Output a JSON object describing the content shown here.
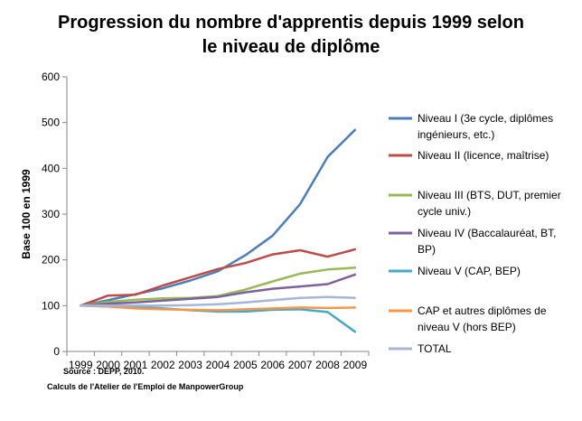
{
  "chart_data": {
    "type": "line",
    "title": "Progression du nombre d'apprentis depuis 1999 selon le niveau de diplôme",
    "title_lines": [
      "Progression du nombre d'apprentis depuis 1999 selon",
      "le niveau de diplôme"
    ],
    "ylabel": "Base 100 en 1999",
    "xlabel": "",
    "ylim": [
      0,
      600
    ],
    "y_ticks": [
      0,
      100,
      200,
      300,
      400,
      500,
      600
    ],
    "x": [
      "1999",
      "2000",
      "2001",
      "2002",
      "2003",
      "2004",
      "2005",
      "2006",
      "2007",
      "2008",
      "2009"
    ],
    "grid": false,
    "legend_position": "right",
    "series": [
      {
        "name": "Niveau I (3e cycle, diplômes ingénieurs, etc.)",
        "label_lines": [
          "Niveau I (3e cycle, diplômes",
          "ingénieurs, etc.)"
        ],
        "color": "#4a7ebb",
        "values": [
          100,
          112,
          125,
          138,
          155,
          175,
          210,
          253,
          322,
          425,
          484
        ]
      },
      {
        "name": "Niveau II (licence, maîtrise)",
        "label_lines": [
          "Niveau II (licence, maîtrise)"
        ],
        "color": "#be4b48",
        "values": [
          100,
          122,
          124,
          144,
          162,
          180,
          193,
          212,
          221,
          207,
          223
        ]
      },
      {
        "name": "Niveau III (BTS, DUT, premier cycle univ.)",
        "label_lines": [
          "Niveau III (BTS, DUT, premier",
          "cycle univ.)"
        ],
        "color": "#98b954",
        "values": [
          100,
          108,
          113,
          116,
          117,
          121,
          135,
          153,
          170,
          179,
          183
        ]
      },
      {
        "name": "Niveau IV (Baccalauréat, BT, BP)",
        "label_lines": [
          "Niveau IV (Baccalauréat, BT,",
          "BP)"
        ],
        "color": "#7d60a0",
        "values": [
          100,
          104,
          107,
          111,
          115,
          119,
          129,
          137,
          142,
          147,
          168
        ]
      },
      {
        "name": "Niveau V (CAP, BEP)",
        "label_lines": [
          "Niveau V (CAP, BEP)"
        ],
        "color": "#46aac4",
        "values": [
          100,
          98,
          97,
          94,
          90,
          87,
          87,
          91,
          92,
          86,
          43
        ]
      },
      {
        "name": "CAP et autres diplômes de niveau V (hors BEP)",
        "label_lines": [
          "CAP et autres diplômes de",
          "niveau V (hors BEP)"
        ],
        "color": "#f79646",
        "values": [
          100,
          98,
          94,
          92,
          91,
          90,
          92,
          94,
          96,
          95,
          96
        ]
      },
      {
        "name": "TOTAL",
        "label_lines": [
          "TOTAL"
        ],
        "color": "#a5b6d9",
        "values": [
          100,
          100,
          100,
          100,
          101,
          103,
          107,
          112,
          117,
          119,
          117
        ]
      }
    ]
  },
  "source": {
    "line1": "Source : DEPP, 2010.",
    "line2": "Calculs de l'Atelier de l'Emploi de ManpowerGroup"
  }
}
